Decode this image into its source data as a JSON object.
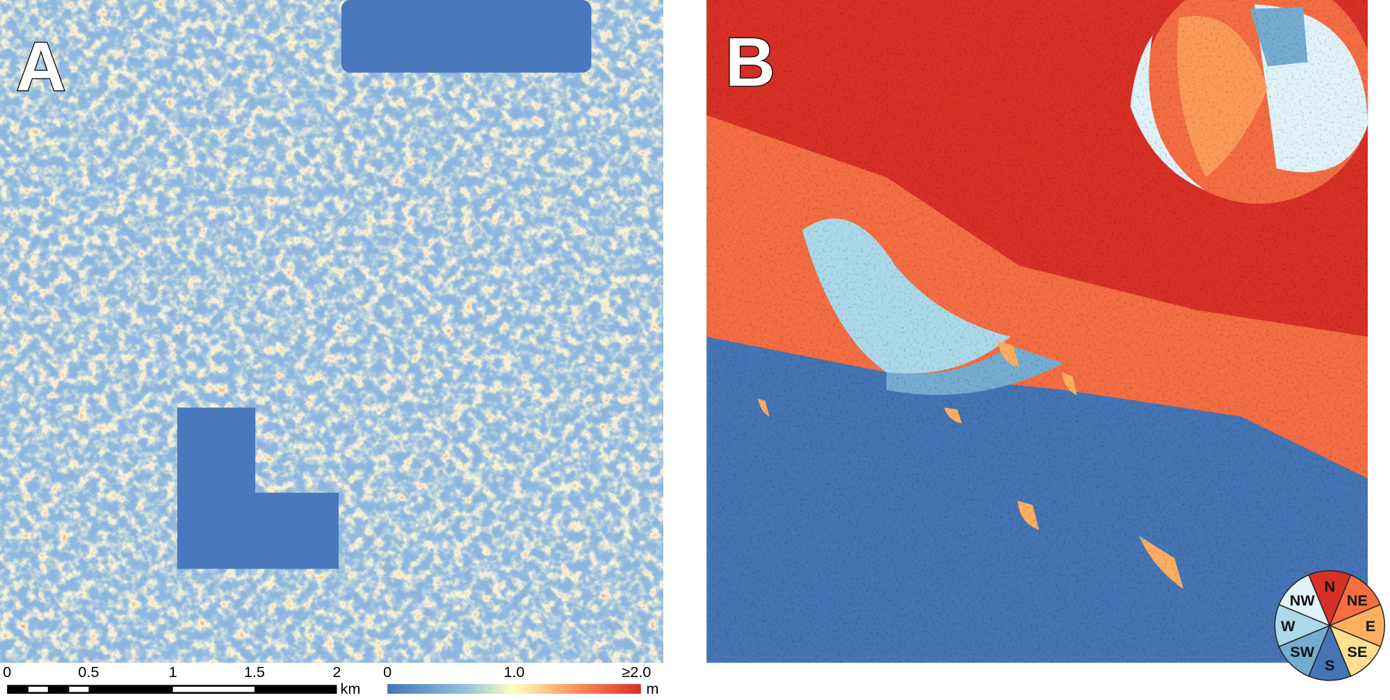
{
  "panel_a": {
    "label": "A",
    "scale_bar": {
      "ticks": [
        "0",
        "0.5",
        "1",
        "1.5",
        "2"
      ],
      "unit": "km"
    },
    "color_bar": {
      "ticks": [
        "0",
        "1.0",
        "≥2.0"
      ],
      "unit": "m"
    }
  },
  "panel_b": {
    "label": "B",
    "compass": [
      "N",
      "NE",
      "E",
      "SE",
      "S",
      "SW",
      "W",
      "NW"
    ]
  }
}
